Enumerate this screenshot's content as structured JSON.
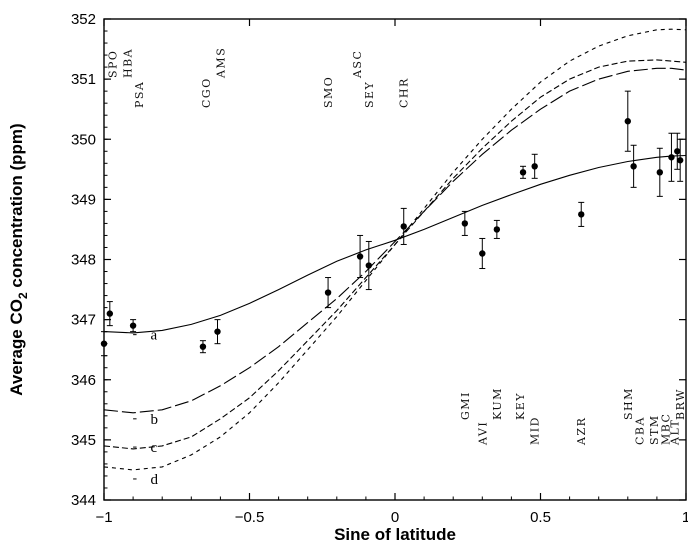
{
  "chart_data": {
    "type": "scatter",
    "xlabel": "Sine of latitude",
    "ylabel_prefix": "Average CO",
    "ylabel_sub": "2",
    "ylabel_suffix": " concentration (ppm)",
    "xlim": [
      -1,
      1
    ],
    "ylim": [
      344,
      352
    ],
    "xticks": [
      -1,
      -0.5,
      0,
      0.5,
      1
    ],
    "xtick_labels": [
      "−1",
      "−0.5",
      "0",
      "0.5",
      "1"
    ],
    "yticks": [
      344,
      345,
      346,
      347,
      348,
      349,
      350,
      351,
      352
    ],
    "ytick_labels": [
      "344",
      "345",
      "346",
      "347",
      "348",
      "349",
      "350",
      "351",
      "352"
    ],
    "grid": false,
    "points": [
      {
        "x": -1.0,
        "y": 346.6,
        "err": 0.2
      },
      {
        "x": -0.98,
        "y": 347.1,
        "err": 0.2
      },
      {
        "x": -0.9,
        "y": 346.9,
        "err": 0.1
      },
      {
        "x": -0.66,
        "y": 346.55,
        "err": 0.1
      },
      {
        "x": -0.61,
        "y": 346.8,
        "err": 0.2
      },
      {
        "x": -0.23,
        "y": 347.45,
        "err": 0.25
      },
      {
        "x": -0.12,
        "y": 348.05,
        "err": 0.35
      },
      {
        "x": -0.09,
        "y": 347.9,
        "err": 0.4
      },
      {
        "x": 0.03,
        "y": 348.55,
        "err": 0.3
      },
      {
        "x": 0.24,
        "y": 348.6,
        "err": 0.2
      },
      {
        "x": 0.3,
        "y": 348.1,
        "err": 0.25
      },
      {
        "x": 0.35,
        "y": 348.5,
        "err": 0.15
      },
      {
        "x": 0.44,
        "y": 349.45,
        "err": 0.1
      },
      {
        "x": 0.48,
        "y": 349.55,
        "err": 0.2
      },
      {
        "x": 0.64,
        "y": 348.75,
        "err": 0.2
      },
      {
        "x": 0.8,
        "y": 350.3,
        "err": 0.5
      },
      {
        "x": 0.82,
        "y": 349.55,
        "err": 0.35
      },
      {
        "x": 0.91,
        "y": 349.45,
        "err": 0.4
      },
      {
        "x": 0.95,
        "y": 349.7,
        "err": 0.4
      },
      {
        "x": 0.97,
        "y": 349.8,
        "err": 0.3
      },
      {
        "x": 0.98,
        "y": 349.65,
        "err": 0.35
      }
    ],
    "curves": [
      {
        "label": "a",
        "x": [
          -1,
          -0.9,
          -0.8,
          -0.7,
          -0.6,
          -0.5,
          -0.4,
          -0.3,
          -0.2,
          -0.1,
          0,
          0.1,
          0.2,
          0.3,
          0.4,
          0.5,
          0.6,
          0.7,
          0.8,
          0.9,
          0.95,
          1
        ],
        "y": [
          346.8,
          346.78,
          346.82,
          346.92,
          347.07,
          347.27,
          347.5,
          347.74,
          347.97,
          348.16,
          348.32,
          348.5,
          348.7,
          348.9,
          349.08,
          349.25,
          349.4,
          349.53,
          349.63,
          349.7,
          349.72,
          349.73
        ],
        "label_x": -0.84,
        "label_y": 346.75
      },
      {
        "label": "b",
        "x": [
          -1,
          -0.9,
          -0.8,
          -0.7,
          -0.6,
          -0.5,
          -0.4,
          -0.3,
          -0.2,
          -0.1,
          0,
          0.1,
          0.2,
          0.3,
          0.4,
          0.5,
          0.6,
          0.7,
          0.8,
          0.9,
          0.95,
          1
        ],
        "y": [
          345.5,
          345.45,
          345.5,
          345.65,
          345.9,
          346.2,
          346.55,
          346.95,
          347.35,
          347.8,
          348.3,
          348.8,
          349.3,
          349.75,
          350.15,
          350.5,
          350.8,
          351.0,
          351.13,
          351.18,
          351.18,
          351.15
        ],
        "label_x": -0.84,
        "label_y": 345.35
      },
      {
        "label": "c",
        "x": [
          -1,
          -0.9,
          -0.8,
          -0.7,
          -0.6,
          -0.5,
          -0.4,
          -0.3,
          -0.2,
          -0.1,
          0,
          0.1,
          0.2,
          0.3,
          0.4,
          0.5,
          0.6,
          0.7,
          0.8,
          0.9,
          0.95,
          1
        ],
        "y": [
          344.9,
          344.85,
          344.9,
          345.05,
          345.35,
          345.7,
          346.15,
          346.65,
          347.15,
          347.7,
          348.25,
          348.8,
          349.35,
          349.85,
          350.3,
          350.7,
          351.0,
          351.2,
          351.3,
          351.32,
          351.3,
          351.28
        ],
        "label_x": -0.84,
        "label_y": 344.88
      },
      {
        "label": "d",
        "x": [
          -1,
          -0.9,
          -0.8,
          -0.7,
          -0.6,
          -0.5,
          -0.4,
          -0.3,
          -0.2,
          -0.1,
          0,
          0.1,
          0.2,
          0.3,
          0.4,
          0.5,
          0.6,
          0.7,
          0.8,
          0.9,
          0.95,
          1
        ],
        "y": [
          344.55,
          344.5,
          344.55,
          344.75,
          345.05,
          345.45,
          345.95,
          346.5,
          347.05,
          347.65,
          348.25,
          348.85,
          349.45,
          350.0,
          350.5,
          350.95,
          351.3,
          351.55,
          351.72,
          351.82,
          351.83,
          351.82
        ],
        "label_x": -0.84,
        "label_y": 344.35
      }
    ],
    "stations_top": [
      {
        "code": "SPO",
        "x": -0.97,
        "row": 0
      },
      {
        "code": "HBA",
        "x": -0.92,
        "row": 0
      },
      {
        "code": "PSA",
        "x": -0.88,
        "row": 1
      },
      {
        "code": "CGO",
        "x": -0.65,
        "row": 1
      },
      {
        "code": "AMS",
        "x": -0.6,
        "row": 0
      },
      {
        "code": "SMO",
        "x": -0.23,
        "row": 1
      },
      {
        "code": "ASC",
        "x": -0.13,
        "row": 0
      },
      {
        "code": "SEY",
        "x": -0.09,
        "row": 1
      },
      {
        "code": "CHR",
        "x": 0.03,
        "row": 1
      }
    ],
    "stations_bottom": [
      {
        "code": "GMI",
        "x": 0.24,
        "row": 0
      },
      {
        "code": "AVI",
        "x": 0.3,
        "row": 1
      },
      {
        "code": "KUM",
        "x": 0.35,
        "row": 0
      },
      {
        "code": "KEY",
        "x": 0.43,
        "row": 0
      },
      {
        "code": "MID",
        "x": 0.48,
        "row": 1
      },
      {
        "code": "AZR",
        "x": 0.64,
        "row": 1
      },
      {
        "code": "SHM",
        "x": 0.8,
        "row": 0
      },
      {
        "code": "CBA",
        "x": 0.84,
        "row": 1
      },
      {
        "code": "STM",
        "x": 0.89,
        "row": 1
      },
      {
        "code": "MBC",
        "x": 0.93,
        "row": 1
      },
      {
        "code": "ALT",
        "x": 0.96,
        "row": 1
      },
      {
        "code": "BRW",
        "x": 0.98,
        "row": 0
      }
    ]
  }
}
